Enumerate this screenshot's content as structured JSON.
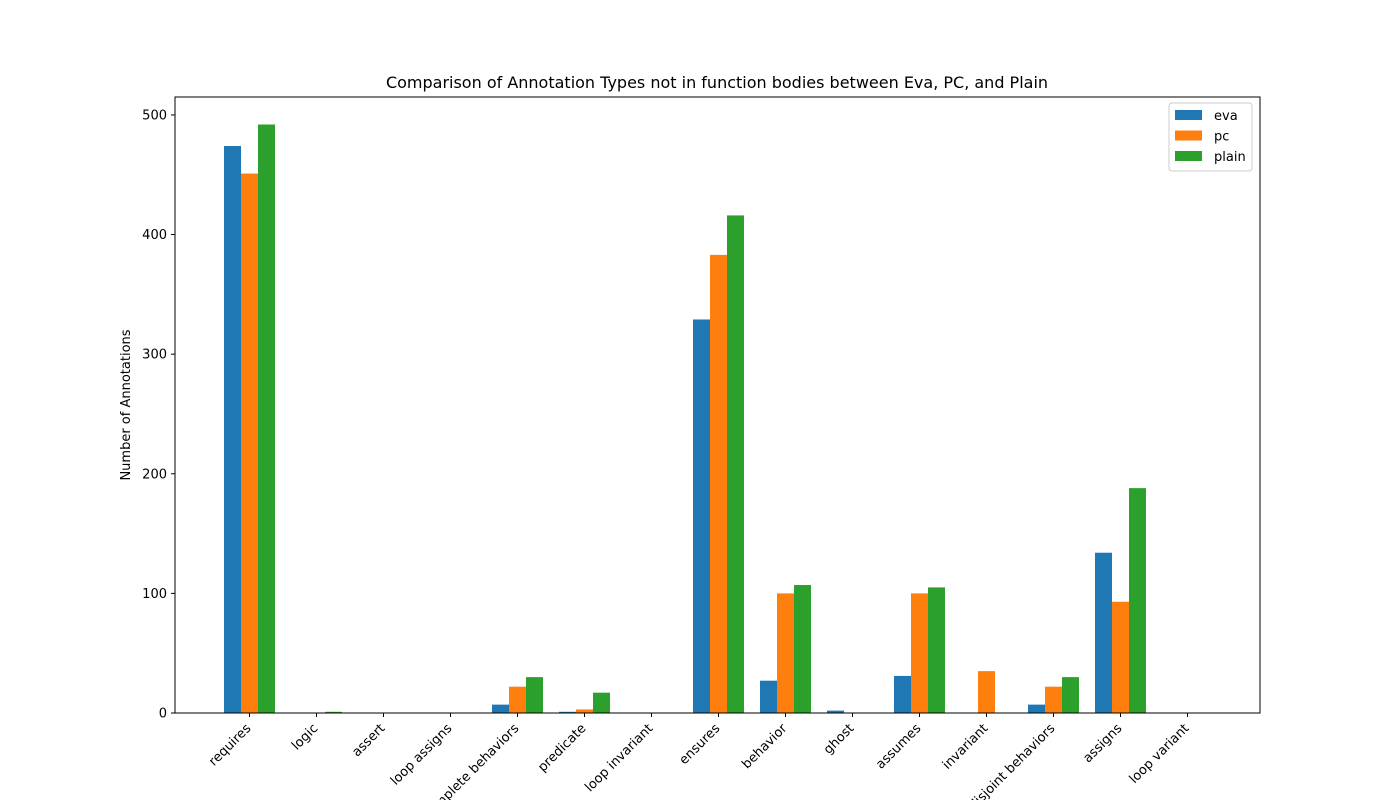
{
  "chart_data": {
    "type": "bar",
    "title": "Comparison of Annotation Types not in function bodies between Eva, PC, and Plain",
    "xlabel": "",
    "ylabel": "Number of Annotations",
    "ylim": [
      0,
      515
    ],
    "yticks": [
      0,
      100,
      200,
      300,
      400,
      500
    ],
    "grid": false,
    "legend_position": "top-right",
    "categories": [
      "requires",
      "logic",
      "assert",
      "loop assigns",
      "complete behaviors",
      "predicate",
      "loop invariant",
      "ensures",
      "behavior",
      "ghost",
      "assumes",
      "invariant",
      "disjoint behaviors",
      "assigns",
      "loop variant"
    ],
    "series": [
      {
        "name": "eva",
        "color": "#1f77b4",
        "values": [
          474,
          0,
          0,
          0,
          7,
          1,
          0,
          329,
          27,
          2,
          31,
          0,
          7,
          134,
          0
        ]
      },
      {
        "name": "pc",
        "color": "#ff7f0e",
        "values": [
          451,
          0,
          0,
          0,
          22,
          3,
          0,
          383,
          100,
          0,
          100,
          35,
          22,
          93,
          0
        ]
      },
      {
        "name": "plain",
        "color": "#2ca02c",
        "values": [
          492,
          1,
          0,
          0,
          30,
          17,
          0,
          416,
          107,
          0,
          105,
          0,
          30,
          188,
          0
        ]
      }
    ]
  }
}
